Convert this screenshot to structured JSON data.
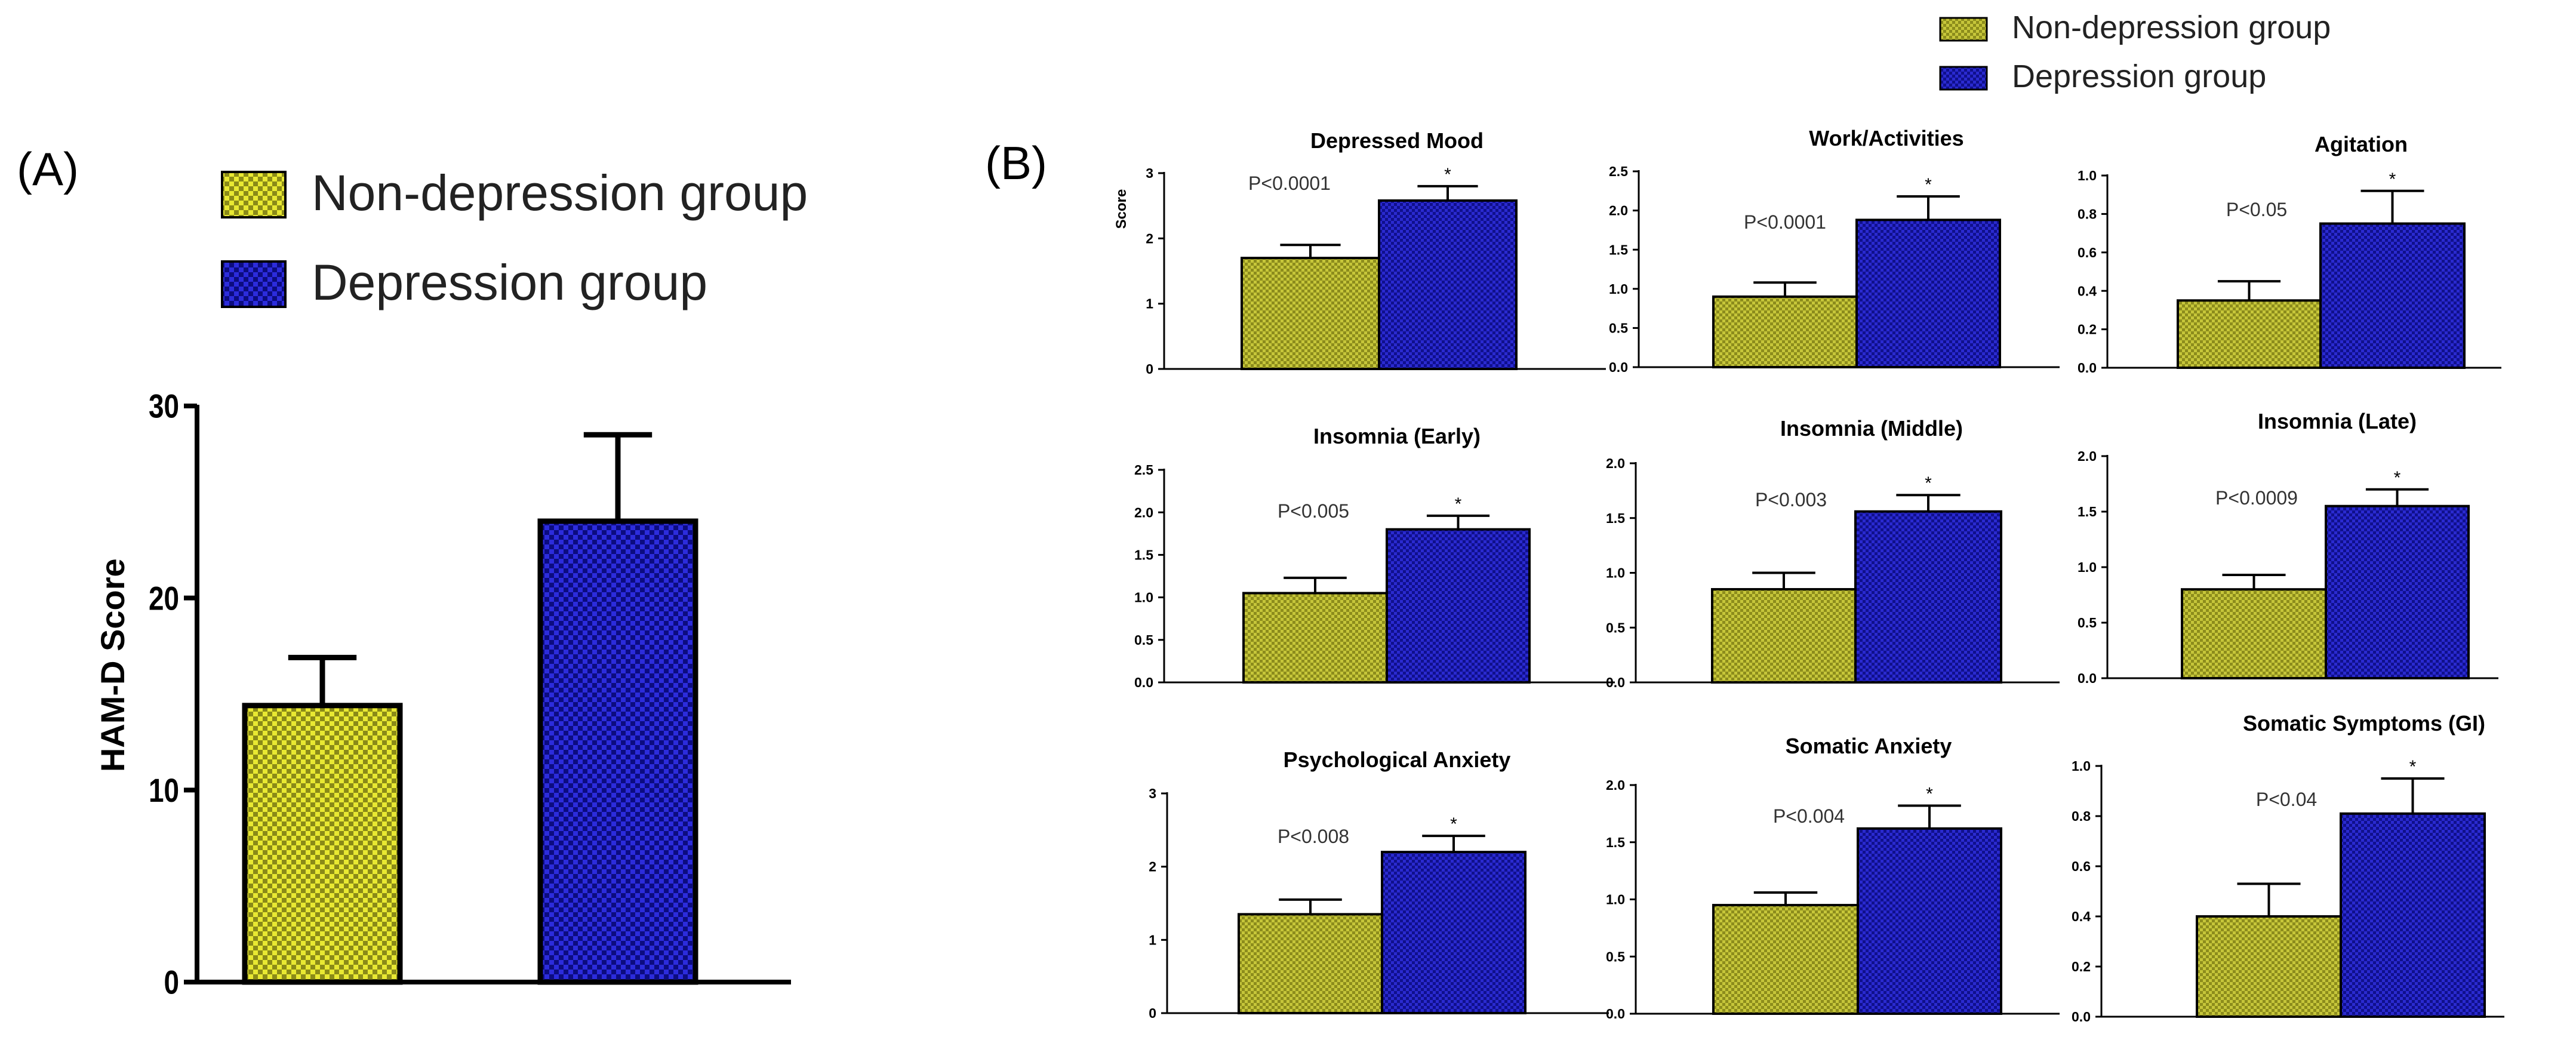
{
  "labels": {
    "panel_a": "(A)",
    "panel_b": "(B)"
  },
  "legend": {
    "items": [
      {
        "name": "Non-depression group",
        "color": "#9a9a22",
        "pattern": "yellow-check"
      },
      {
        "name": "Depression group",
        "color": "#1a1aa8",
        "pattern": "blue-check"
      }
    ]
  },
  "chart_data": [
    {
      "id": "A",
      "type": "bar",
      "title": "",
      "xlabel": "",
      "ylabel": "HAM-D Score",
      "ylim": [
        0,
        30
      ],
      "ticks": [
        "0",
        "10",
        "20",
        "30"
      ],
      "categories": [
        "Non-depression group",
        "Depression group"
      ],
      "values": [
        14.4,
        24.0
      ],
      "errors": [
        2.5,
        4.5
      ],
      "annotation": "",
      "star": ""
    },
    {
      "id": "B1",
      "type": "bar",
      "title": "Depressed Mood",
      "ylabel": "Score",
      "ylim": [
        0,
        3
      ],
      "ticks": [
        "0",
        "1",
        "2",
        "3"
      ],
      "categories": [
        "Non-depression group",
        "Depression group"
      ],
      "values": [
        1.7,
        2.58
      ],
      "errors": [
        0.2,
        0.22
      ],
      "annotation": "P<0.0001",
      "star": "*"
    },
    {
      "id": "B2",
      "type": "bar",
      "title": "Work/Activities",
      "ylabel": "",
      "ylim": [
        0,
        2.5
      ],
      "ticks": [
        "0.0",
        "0.5",
        "1.0",
        "1.5",
        "2.0",
        "2.5"
      ],
      "categories": [
        "Non-depression group",
        "Depression group"
      ],
      "values": [
        0.9,
        1.88
      ],
      "errors": [
        0.18,
        0.3
      ],
      "annotation": "P<0.0001",
      "star": "*"
    },
    {
      "id": "B3",
      "type": "bar",
      "title": "Agitation",
      "ylabel": "",
      "ylim": [
        0,
        1.0
      ],
      "ticks": [
        "0.0",
        "0.2",
        "0.4",
        "0.6",
        "0.8",
        "1.0"
      ],
      "categories": [
        "Non-depression group",
        "Depression group"
      ],
      "values": [
        0.35,
        0.75
      ],
      "errors": [
        0.1,
        0.17
      ],
      "annotation": "P<0.05",
      "star": "*"
    },
    {
      "id": "B4",
      "type": "bar",
      "title": "Insomnia (Early)",
      "ylabel": "",
      "ylim": [
        0,
        2.5
      ],
      "ticks": [
        "0.0",
        "0.5",
        "1.0",
        "1.5",
        "2.0",
        "2.5"
      ],
      "categories": [
        "Non-depression group",
        "Depression group"
      ],
      "values": [
        1.05,
        1.8
      ],
      "errors": [
        0.18,
        0.16
      ],
      "annotation": "P<0.005",
      "star": "*"
    },
    {
      "id": "B5",
      "type": "bar",
      "title": "Insomnia (Middle)",
      "ylabel": "",
      "ylim": [
        0,
        2.0
      ],
      "ticks": [
        "0.0",
        "0.5",
        "1.0",
        "1.5",
        "2.0"
      ],
      "categories": [
        "Non-depression group",
        "Depression group"
      ],
      "values": [
        0.85,
        1.56
      ],
      "errors": [
        0.15,
        0.15
      ],
      "annotation": "P<0.003",
      "star": "*"
    },
    {
      "id": "B6",
      "type": "bar",
      "title": "Insomnia (Late)",
      "ylabel": "",
      "ylim": [
        0,
        2.0
      ],
      "ticks": [
        "0.0",
        "0.5",
        "1.0",
        "1.5",
        "2.0"
      ],
      "categories": [
        "Non-depression group",
        "Depression group"
      ],
      "values": [
        0.8,
        1.55
      ],
      "errors": [
        0.13,
        0.15
      ],
      "annotation": "P<0.0009",
      "star": "*"
    },
    {
      "id": "B7",
      "type": "bar",
      "title": "Psychological Anxiety",
      "ylabel": "",
      "ylim": [
        0,
        3
      ],
      "ticks": [
        "0",
        "1",
        "2",
        "3"
      ],
      "categories": [
        "Non-depression group",
        "Depression group"
      ],
      "values": [
        1.35,
        2.2
      ],
      "errors": [
        0.2,
        0.22
      ],
      "annotation": "P<0.008",
      "star": "*"
    },
    {
      "id": "B8",
      "type": "bar",
      "title": "Somatic Anxiety",
      "ylabel": "",
      "ylim": [
        0,
        2.0
      ],
      "ticks": [
        "0.0",
        "0.5",
        "1.0",
        "1.5",
        "2.0"
      ],
      "categories": [
        "Non-depression group",
        "Depression group"
      ],
      "values": [
        0.95,
        1.62
      ],
      "errors": [
        0.11,
        0.2
      ],
      "annotation": "P<0.004",
      "star": "*"
    },
    {
      "id": "B9",
      "type": "bar",
      "title": "Somatic Symptoms (GI)",
      "ylabel": "",
      "ylim": [
        0,
        1.0
      ],
      "ticks": [
        "0.0",
        "0.2",
        "0.4",
        "0.6",
        "0.8",
        "1.0"
      ],
      "categories": [
        "Non-depression group",
        "Depression group"
      ],
      "values": [
        0.4,
        0.81
      ],
      "errors": [
        0.13,
        0.14
      ],
      "annotation": "P<0.04",
      "star": "*"
    }
  ]
}
